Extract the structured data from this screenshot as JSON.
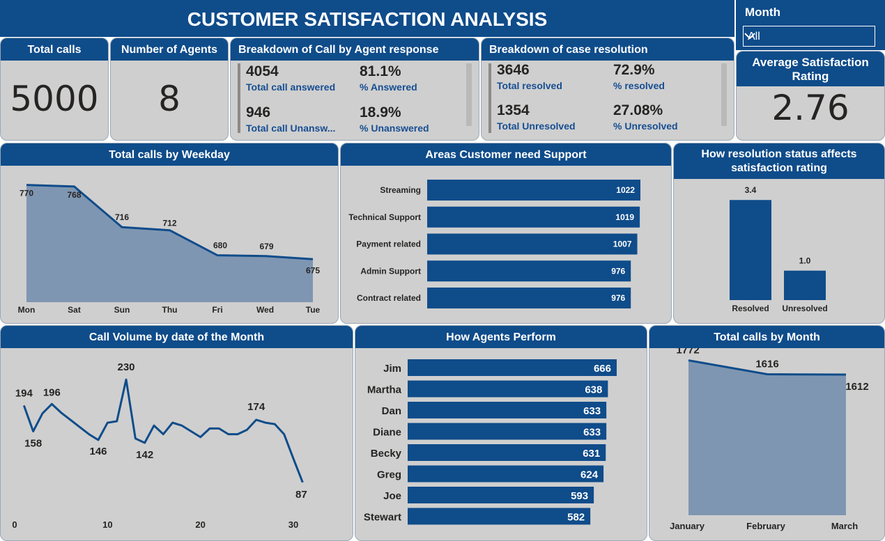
{
  "title": "CUSTOMER SATISFACTION ANALYSIS",
  "slicer": {
    "label": "Month",
    "value": "All"
  },
  "kpis": {
    "total_calls": {
      "label": "Total calls",
      "value": "5000"
    },
    "agents": {
      "label": "Number of Agents",
      "value": "8"
    },
    "avg_rating": {
      "label": "Average Satisfaction Rating",
      "value": "2.76"
    }
  },
  "agent_response": {
    "title": "Breakdown of Call by Agent response",
    "answered": "4054",
    "answered_label": "Total call answered",
    "pct_answered": "81.1%",
    "pct_answered_label": "% Answered",
    "unanswered": "946",
    "unanswered_label": "Total call Unansw...",
    "pct_unanswered": "18.9%",
    "pct_unanswered_label": "% Unanswered"
  },
  "case_resolution": {
    "title": "Breakdown of case resolution",
    "resolved": "3646",
    "resolved_label": "Total resolved",
    "pct_resolved": "72.9%",
    "pct_resolved_label": "% resolved",
    "unresolved": "1354",
    "unresolved_label": "Total Unresolved",
    "pct_unresolved": "27.08%",
    "pct_unresolved_label": "% Unresolved"
  },
  "colors": {
    "primary": "#0f4c8a",
    "area": "#7f96b2",
    "card": "#cfcfcf"
  },
  "chart_data": [
    {
      "id": "weekday",
      "type": "area",
      "title": "Total calls by Weekday",
      "categories": [
        "Mon",
        "Sat",
        "Sun",
        "Thu",
        "Fri",
        "Wed",
        "Tue"
      ],
      "values": [
        770,
        768,
        716,
        712,
        680,
        679,
        675
      ],
      "ylim": [
        620,
        775
      ]
    },
    {
      "id": "areas",
      "type": "bar",
      "orientation": "horizontal",
      "title": "Areas Customer need Support",
      "categories": [
        "Streaming",
        "Technical Support",
        "Payment related",
        "Admin Support",
        "Contract related"
      ],
      "values": [
        1022,
        1019,
        1007,
        976,
        976
      ]
    },
    {
      "id": "resolution",
      "type": "bar",
      "title": "How resolution status affects satisfaction rating",
      "categories": [
        "Resolved",
        "Unresolved"
      ],
      "values": [
        3.4,
        1.0
      ],
      "value_labels": [
        "3.4",
        "1.0"
      ],
      "ylim": [
        0,
        3.5
      ]
    },
    {
      "id": "daily",
      "type": "line",
      "title": "Call Volume by date of the Month",
      "x": [
        1,
        2,
        3,
        4,
        5,
        6,
        7,
        8,
        9,
        10,
        11,
        12,
        13,
        14,
        15,
        16,
        17,
        18,
        19,
        20,
        21,
        22,
        23,
        24,
        25,
        26,
        27,
        28,
        29,
        30,
        31
      ],
      "values": [
        194,
        158,
        183,
        196,
        184,
        174,
        164,
        154,
        146,
        170,
        172,
        230,
        148,
        142,
        166,
        154,
        170,
        166,
        158,
        150,
        162,
        162,
        154,
        154,
        160,
        174,
        170,
        168,
        154,
        120,
        87
      ],
      "labeled_points": {
        "1": "194",
        "2": "158",
        "4": "196",
        "9": "146",
        "12": "230",
        "14": "142",
        "26": "174",
        "31": "87"
      },
      "xticks": [
        0,
        10,
        20,
        30
      ],
      "xlim": [
        0,
        32
      ],
      "ylim": [
        80,
        235
      ]
    },
    {
      "id": "agents",
      "type": "bar",
      "orientation": "horizontal",
      "title": "How Agents Perform",
      "categories": [
        "Jim",
        "Martha",
        "Dan",
        "Diane",
        "Becky",
        "Greg",
        "Joe",
        "Stewart"
      ],
      "values": [
        666,
        638,
        633,
        633,
        631,
        624,
        593,
        582
      ]
    },
    {
      "id": "monthly",
      "type": "area",
      "title": "Total calls by Month",
      "categories": [
        "January",
        "February",
        "March"
      ],
      "values": [
        1772,
        1616,
        1612
      ],
      "ylim": [
        0,
        1800
      ]
    }
  ]
}
